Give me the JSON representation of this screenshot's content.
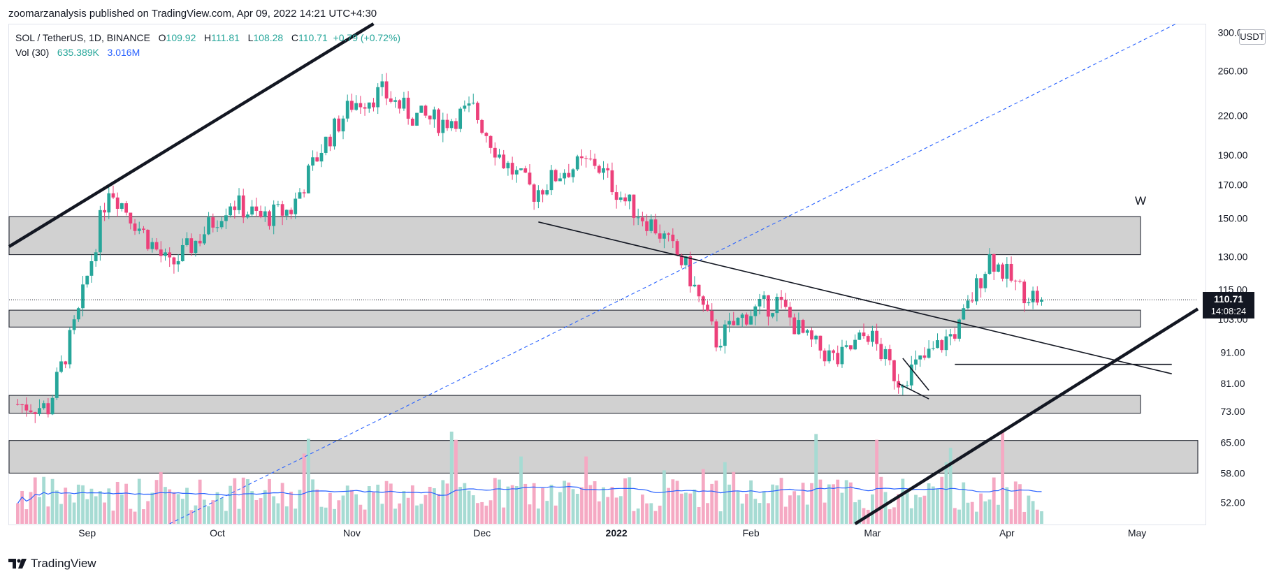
{
  "header": {
    "published": "zoomarzanalysis published on TradingView.com, Apr 09, 2022 14:21 UTC+4:30"
  },
  "legend": {
    "symbol": "SOL / TetherUS, 1D, BINANCE",
    "o_label": "O",
    "o": "109.92",
    "h_label": "H",
    "h": "111.81",
    "l_label": "L",
    "l": "108.28",
    "c_label": "C",
    "c": "110.71",
    "change": "+0.79 (+0.72%)",
    "vol_label": "Vol (30)",
    "vol_value": "635.389K",
    "vol_ma": "3.016M"
  },
  "price_scale": {
    "currency": "USDT",
    "last_price": "110.71",
    "countdown": "14:08:24",
    "ticks": [
      "300.00",
      "260.00",
      "220.00",
      "190.00",
      "170.00",
      "150.00",
      "130.00",
      "115.00",
      "103.00",
      "91.00",
      "81.00",
      "73.00",
      "65.00",
      "58.00",
      "52.00"
    ]
  },
  "time_scale": {
    "ticks": [
      {
        "label": "Sep",
        "bold": false
      },
      {
        "label": "Oct",
        "bold": false
      },
      {
        "label": "Nov",
        "bold": false
      },
      {
        "label": "Dec",
        "bold": false
      },
      {
        "label": "2022",
        "bold": true
      },
      {
        "label": "Feb",
        "bold": false
      },
      {
        "label": "Mar",
        "bold": false
      },
      {
        "label": "Apr",
        "bold": false
      },
      {
        "label": "May",
        "bold": false
      }
    ]
  },
  "annotations": {
    "w_label": "W"
  },
  "colors": {
    "up": "#26a69a",
    "down": "#ec407a",
    "vol_up": "#a6dbd3",
    "vol_down": "#f5a9c3",
    "zone_fill": "#d1d1d1",
    "ma_line": "#2962ff",
    "last_price_tag": "#131722"
  },
  "logo": {
    "text": "TradingView"
  },
  "chart_data": {
    "type": "candlestick",
    "symbol": "SOL / TetherUS",
    "interval": "1D",
    "exchange": "BINANCE",
    "y_scale": "log",
    "ylim": [
      48,
      310
    ],
    "x_range": [
      "2021-08-14",
      "2022-05-15"
    ],
    "last": {
      "date": "2022-04-09",
      "open": 109.92,
      "high": 111.81,
      "low": 108.28,
      "close": 110.71
    },
    "price_path_weekly": [
      {
        "date": "2021-08-16",
        "close": 75
      },
      {
        "date": "2021-08-23",
        "close": 74
      },
      {
        "date": "2021-08-30",
        "close": 105
      },
      {
        "date": "2021-09-06",
        "close": 170
      },
      {
        "date": "2021-09-13",
        "close": 145
      },
      {
        "date": "2021-09-20",
        "close": 125
      },
      {
        "date": "2021-09-27",
        "close": 140
      },
      {
        "date": "2021-10-04",
        "close": 160
      },
      {
        "date": "2021-10-11",
        "close": 150
      },
      {
        "date": "2021-10-18",
        "close": 155
      },
      {
        "date": "2021-10-25",
        "close": 195
      },
      {
        "date": "2021-11-01",
        "close": 230
      },
      {
        "date": "2021-11-08",
        "close": 240
      },
      {
        "date": "2021-11-15",
        "close": 220
      },
      {
        "date": "2021-11-22",
        "close": 215
      },
      {
        "date": "2021-11-29",
        "close": 225
      },
      {
        "date": "2021-12-06",
        "close": 185
      },
      {
        "date": "2021-12-13",
        "close": 165
      },
      {
        "date": "2021-12-20",
        "close": 180
      },
      {
        "date": "2021-12-27",
        "close": 185
      },
      {
        "date": "2022-01-03",
        "close": 160
      },
      {
        "date": "2022-01-10",
        "close": 145
      },
      {
        "date": "2022-01-17",
        "close": 125
      },
      {
        "date": "2022-01-24",
        "close": 95
      },
      {
        "date": "2022-01-31",
        "close": 105
      },
      {
        "date": "2022-02-07",
        "close": 110
      },
      {
        "date": "2022-02-14",
        "close": 95
      },
      {
        "date": "2022-02-21",
        "close": 88
      },
      {
        "date": "2022-02-28",
        "close": 98
      },
      {
        "date": "2022-03-07",
        "close": 82
      },
      {
        "date": "2022-03-14",
        "close": 90
      },
      {
        "date": "2022-03-21",
        "close": 100
      },
      {
        "date": "2022-03-28",
        "close": 130
      },
      {
        "date": "2022-04-04",
        "close": 115
      },
      {
        "date": "2022-04-09",
        "close": 110.71
      }
    ],
    "zones": [
      {
        "low": 131,
        "high": 151
      },
      {
        "low": 100,
        "high": 106.5
      },
      {
        "low": 72.5,
        "high": 77.5
      },
      {
        "low": 58,
        "high": 65.5
      }
    ],
    "lines": [
      {
        "style": "thick",
        "from": {
          "date": "2021-08-14",
          "price": 135
        },
        "to": {
          "date": "2021-11-06",
          "price": 310
        }
      },
      {
        "style": "thick",
        "from": {
          "date": "2022-02-25",
          "price": 48
        },
        "to": {
          "date": "2022-05-15",
          "price": 107
        }
      },
      {
        "style": "dashed",
        "from": {
          "date": "2021-09-20",
          "price": 48
        },
        "to": {
          "date": "2022-05-10",
          "price": 310
        }
      },
      {
        "style": "thin",
        "from": {
          "date": "2021-12-14",
          "price": 148
        },
        "to": {
          "date": "2022-05-09",
          "price": 84
        }
      },
      {
        "style": "thin",
        "from": {
          "date": "2022-03-20",
          "price": 87
        },
        "to": {
          "date": "2022-05-09",
          "price": 87
        }
      },
      {
        "style": "thin",
        "from": {
          "date": "2022-03-08",
          "price": 89
        },
        "to": {
          "date": "2022-03-14",
          "price": 79
        }
      },
      {
        "style": "thin",
        "from": {
          "date": "2022-03-07",
          "price": 81
        },
        "to": {
          "date": "2022-03-14",
          "price": 76.5
        }
      }
    ]
  }
}
